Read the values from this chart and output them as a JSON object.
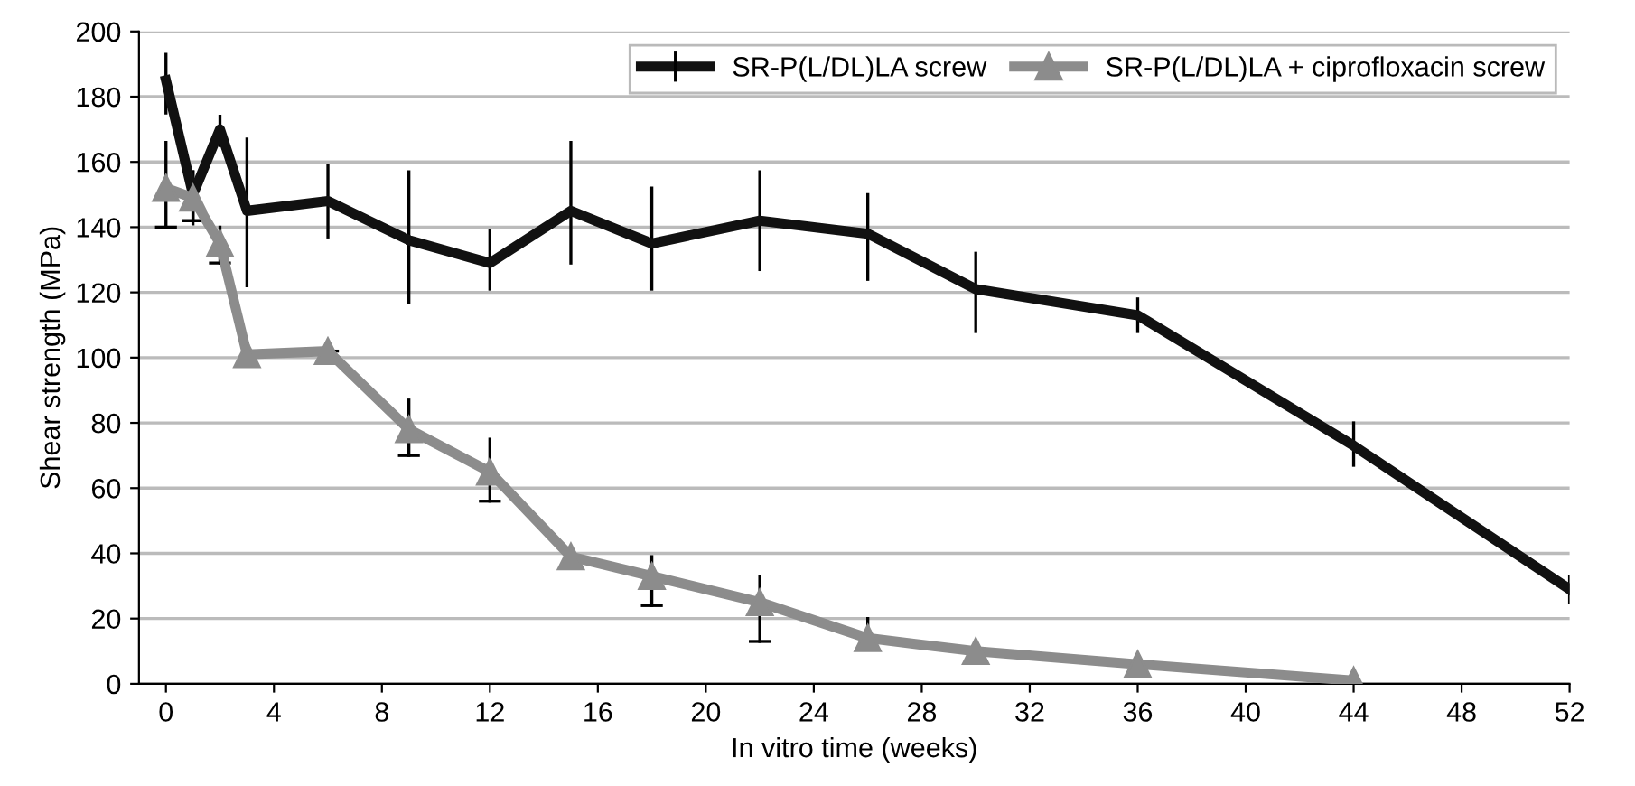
{
  "chart_data": {
    "type": "line",
    "xlabel": "In vitro time (weeks)",
    "ylabel": "Shear strength (MPa)",
    "xlim": [
      -1,
      52
    ],
    "xticks": [
      0,
      4,
      8,
      12,
      16,
      20,
      24,
      28,
      32,
      36,
      40,
      44,
      48,
      52
    ],
    "ylim": [
      0,
      200
    ],
    "yticks": [
      0,
      20,
      40,
      60,
      80,
      100,
      120,
      140,
      160,
      180,
      200
    ],
    "grid": "y",
    "legend": "top right",
    "series": [
      {
        "name": "SR-P(L/DL)LA screw",
        "color": "#111111",
        "marker": "none",
        "x": [
          0,
          1,
          2,
          3,
          6,
          9,
          12,
          15,
          18,
          22,
          26,
          30,
          36,
          44,
          52
        ],
        "values": [
          185,
          150,
          170,
          145,
          148,
          136,
          129,
          145,
          135,
          142,
          138,
          121,
          113,
          73,
          29
        ],
        "errors": [
          [
            175,
            193
          ],
          [
            141,
            157
          ],
          [
            165,
            174
          ],
          [
            122,
            167
          ],
          [
            137,
            159
          ],
          [
            117,
            157
          ],
          [
            121,
            139
          ],
          [
            129,
            166
          ],
          [
            121,
            152
          ],
          [
            127,
            157
          ],
          [
            124,
            150
          ],
          [
            108,
            132
          ],
          [
            108,
            118
          ],
          [
            67,
            80
          ],
          [
            25,
            33
          ]
        ]
      },
      {
        "name": "SR-P(L/DL)LA + ciprofloxacin screw",
        "color": "#8c8c8c",
        "marker": "triangle",
        "x": [
          0,
          1,
          2,
          3,
          6,
          9,
          12,
          15,
          18,
          22,
          26,
          30,
          36,
          44
        ],
        "values": [
          152,
          149,
          135,
          101,
          102,
          78,
          65,
          39,
          33,
          25,
          14,
          10,
          6,
          1
        ],
        "errors": [
          [
            140,
            166
          ],
          [
            142,
            157
          ],
          [
            129,
            140
          ],
          null,
          [
            102,
            105
          ],
          [
            70,
            87
          ],
          [
            56,
            75
          ],
          null,
          [
            24,
            39
          ],
          [
            13,
            33
          ],
          [
            14,
            20
          ],
          null,
          null,
          null
        ]
      }
    ]
  }
}
